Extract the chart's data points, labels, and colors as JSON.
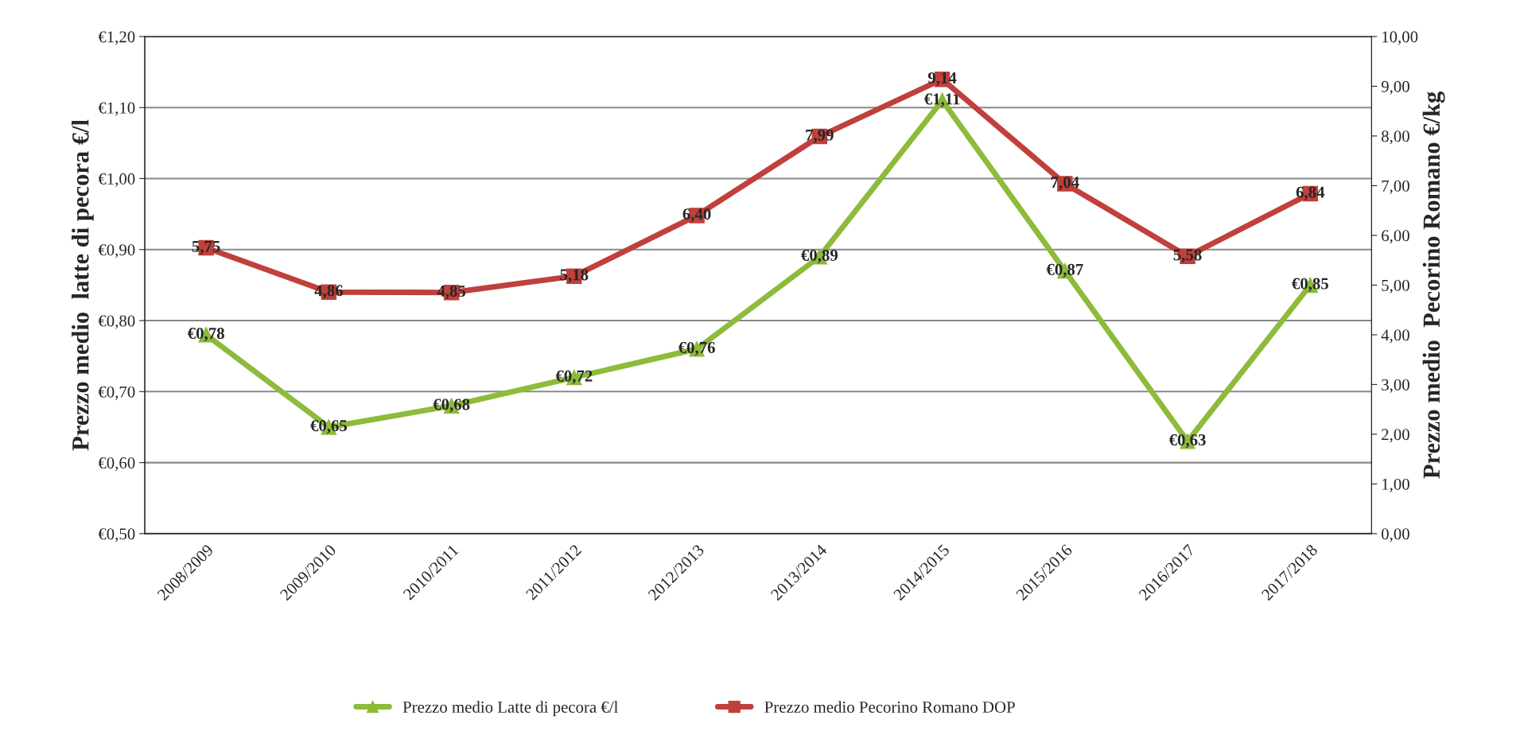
{
  "chart_data": {
    "type": "line",
    "categories": [
      "2008/2009",
      "2009/2010",
      "2010/2011",
      "2011/2012",
      "2012/2013",
      "2013/2014",
      "2014/2015",
      "2015/2016",
      "2016/2017",
      "2017/2018"
    ],
    "series": [
      {
        "name": "Prezzo medio Latte di pecora €/l",
        "color": "#8dbb3a",
        "marker": "triangle",
        "values": [
          0.78,
          0.65,
          0.68,
          0.72,
          0.76,
          0.89,
          1.11,
          0.87,
          0.63,
          0.85
        ],
        "value_labels": [
          "€0,78",
          "€0,65",
          "€0,68",
          "€0,72",
          "€0,76",
          "€0,89",
          "€1,11",
          "€0,87",
          "€0,63",
          "€0,85"
        ]
      },
      {
        "name": "Prezzo medio Pecorino Romano DOP",
        "color": "#c0403c",
        "marker": "square",
        "axis": "y2",
        "values": [
          5.75,
          4.86,
          4.85,
          5.18,
          6.4,
          7.99,
          9.14,
          7.04,
          5.58,
          6.84
        ],
        "value_labels": [
          "5,75",
          "4,86",
          "4,85",
          "5,18",
          "6,40",
          "7,99",
          "9,14",
          "7,04",
          "5,58",
          "6,84"
        ]
      }
    ],
    "ylabel": "Prezzo medio  latte di pecora €/l",
    "y2label": "Prezzo medio  Pecorino Romano €/kg",
    "ylim": [
      0.5,
      1.2
    ],
    "yticks": [
      {
        "value": 0.5,
        "label": "€0,50"
      },
      {
        "value": 0.6,
        "label": "€0,60"
      },
      {
        "value": 0.7,
        "label": "€0,70"
      },
      {
        "value": 0.8,
        "label": "€0,80"
      },
      {
        "value": 0.9,
        "label": "€0,90"
      },
      {
        "value": 1.0,
        "label": "€1,00"
      },
      {
        "value": 1.1,
        "label": "€1,10"
      },
      {
        "value": 1.2,
        "label": "€1,20"
      }
    ],
    "y2lim": [
      0,
      10
    ],
    "y2ticks": [
      {
        "value": 0,
        "label": "0,00"
      },
      {
        "value": 1,
        "label": "1,00"
      },
      {
        "value": 2,
        "label": "2,00"
      },
      {
        "value": 3,
        "label": "3,00"
      },
      {
        "value": 4,
        "label": "4,00"
      },
      {
        "value": 5,
        "label": "5,00"
      },
      {
        "value": 6,
        "label": "6,00"
      },
      {
        "value": 7,
        "label": "7,00"
      },
      {
        "value": 8,
        "label": "8,00"
      },
      {
        "value": 9,
        "label": "9,00"
      },
      {
        "value": 10,
        "label": "10,00"
      }
    ],
    "grid": "y",
    "legend": "bottom",
    "line_style": "solid"
  }
}
